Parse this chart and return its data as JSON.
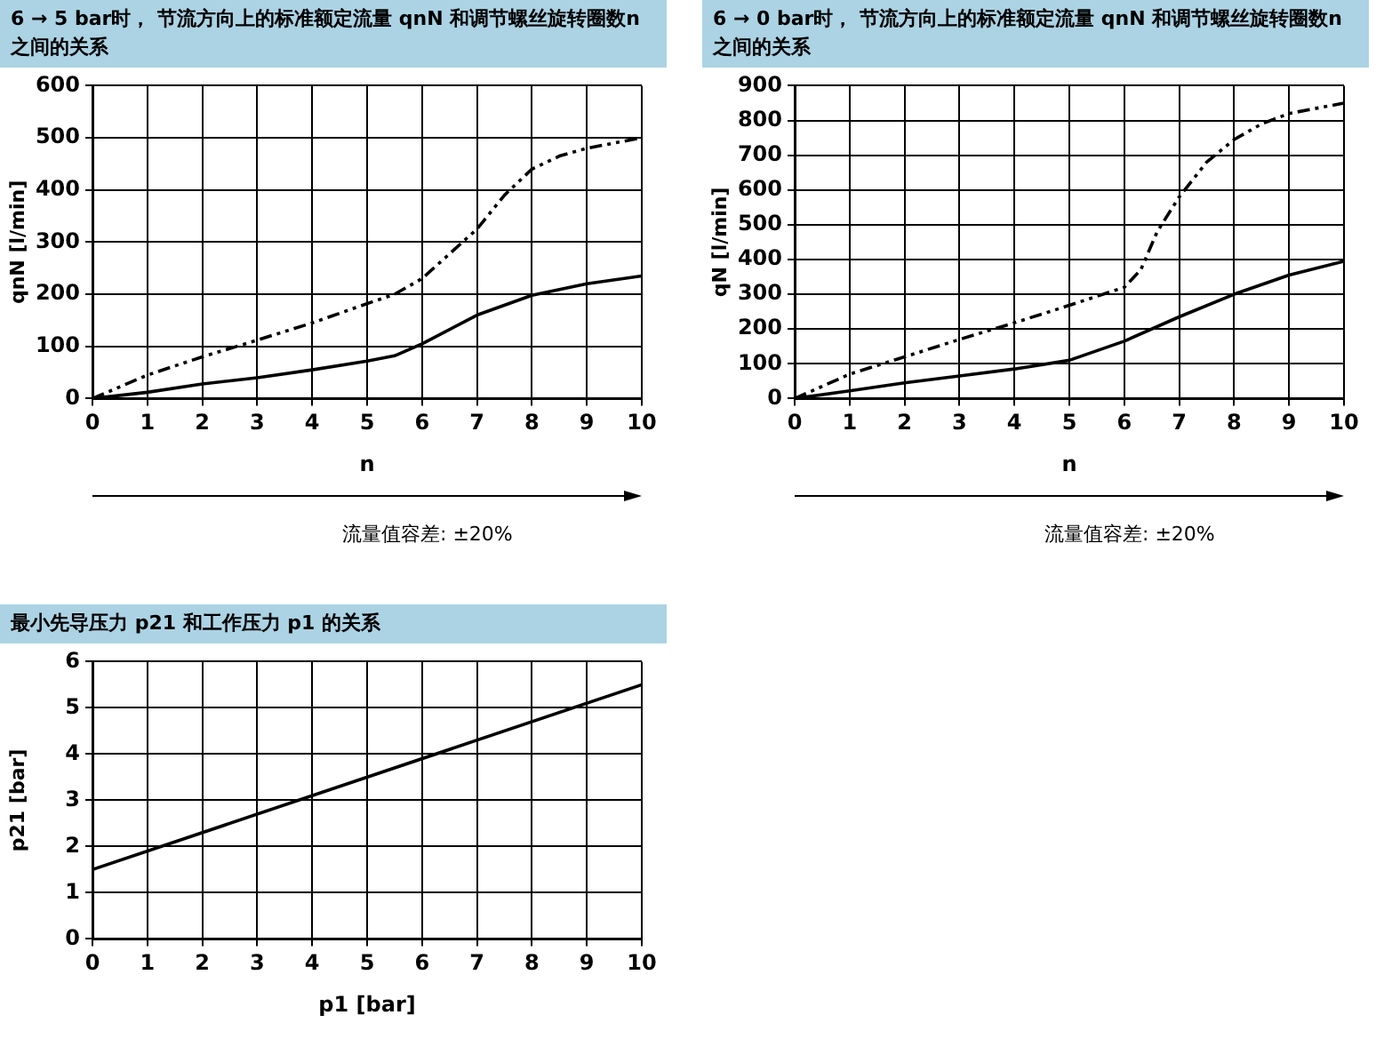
{
  "chart_data": [
    {
      "type": "line",
      "title": "6 → 5 bar时， 节流方向上的标准额定流量 qnN 和调节螺丝旋转圈数n之间的关系",
      "xlabel": "n",
      "ylabel": "qnN [l/min]",
      "xlim": [
        0,
        10
      ],
      "xticks": [
        0,
        1,
        2,
        3,
        4,
        5,
        6,
        7,
        8,
        9,
        10
      ],
      "ylim": [
        0,
        600
      ],
      "yticks": [
        0,
        100,
        200,
        300,
        400,
        500,
        600
      ],
      "grid": true,
      "marker": "none",
      "annotations": [
        "流量值容差: ±20%"
      ],
      "series": [
        {
          "color": "#000000",
          "line_style": "solid",
          "x": [
            0,
            1,
            2,
            3,
            4,
            5,
            5.5,
            6,
            7,
            8,
            9,
            10
          ],
          "values": [
            0,
            12,
            28,
            40,
            55,
            72,
            82,
            105,
            160,
            198,
            220,
            235
          ]
        },
        {
          "color": "#000000",
          "line_style": "dashed",
          "x": [
            0,
            1,
            2,
            3,
            4,
            5,
            5.5,
            6,
            7,
            7.5,
            8,
            8.5,
            9,
            10
          ],
          "values": [
            0,
            45,
            80,
            112,
            145,
            182,
            200,
            230,
            325,
            390,
            440,
            465,
            480,
            500
          ]
        }
      ]
    },
    {
      "type": "line",
      "title": "6 → 0 bar时， 节流方向上的标准额定流量 qnN 和调节螺丝旋转圈数n之间的关系",
      "xlabel": "n",
      "ylabel": "qN [l/min]",
      "xlim": [
        0,
        10
      ],
      "xticks": [
        0,
        1,
        2,
        3,
        4,
        5,
        6,
        7,
        8,
        9,
        10
      ],
      "ylim": [
        0,
        900
      ],
      "yticks": [
        0,
        100,
        200,
        300,
        400,
        500,
        600,
        700,
        800,
        900
      ],
      "grid": true,
      "marker": "none",
      "annotations": [
        "流量值容差: ±20%"
      ],
      "series": [
        {
          "color": "#000000",
          "line_style": "solid",
          "x": [
            0,
            1,
            2,
            3,
            4,
            5,
            6,
            7,
            8,
            9,
            10
          ],
          "values": [
            0,
            22,
            45,
            65,
            85,
            110,
            165,
            235,
            300,
            355,
            395
          ]
        },
        {
          "color": "#000000",
          "line_style": "dashed",
          "x": [
            0,
            1,
            2,
            3,
            4,
            5,
            6,
            6.3,
            6.6,
            7,
            7.5,
            8,
            8.5,
            9,
            10
          ],
          "values": [
            0,
            70,
            120,
            170,
            218,
            268,
            320,
            370,
            480,
            580,
            680,
            745,
            790,
            820,
            850
          ]
        }
      ]
    },
    {
      "type": "line",
      "title": "最小先导压力 p21 和工作压力 p1 的关系",
      "xlabel": "p1 [bar]",
      "ylabel": "p21 [bar]",
      "xlim": [
        0,
        10
      ],
      "xticks": [
        0,
        1,
        2,
        3,
        4,
        5,
        6,
        7,
        8,
        9,
        10
      ],
      "ylim": [
        0,
        6
      ],
      "yticks": [
        0,
        1,
        2,
        3,
        4,
        5,
        6
      ],
      "grid": true,
      "marker": "none",
      "series": [
        {
          "color": "#000000",
          "line_style": "solid",
          "x": [
            0,
            10
          ],
          "values": [
            1.5,
            5.5
          ]
        }
      ]
    }
  ]
}
